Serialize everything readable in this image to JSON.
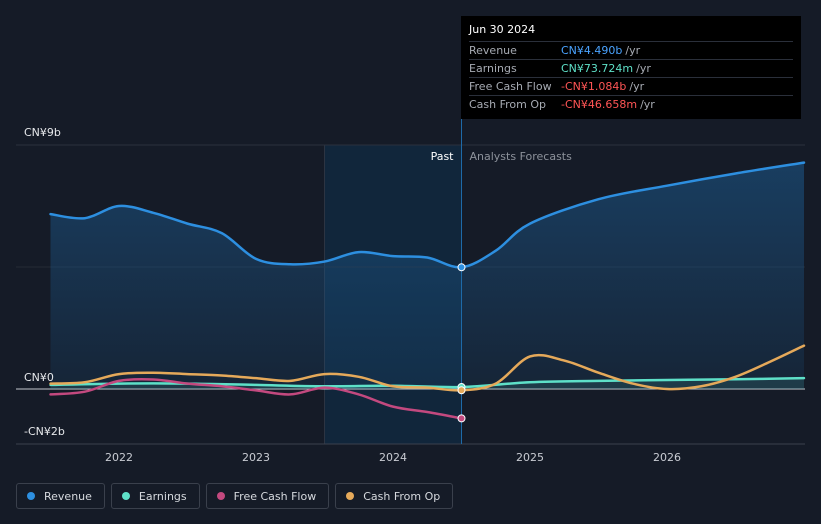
{
  "colors": {
    "revenue": "#2d8fe0",
    "earnings": "#5ee0c8",
    "fcf": "#c3497f",
    "cfo": "#e5a95a",
    "negative": "#ff5555",
    "background": "#151b27"
  },
  "tooltip": {
    "date": "Jun 30 2024",
    "rows": [
      {
        "label": "Revenue",
        "value": "CN¥4.490b",
        "unit": "/yr",
        "color": "#4aa3ff"
      },
      {
        "label": "Earnings",
        "value": "CN¥73.724m",
        "unit": "/yr",
        "color": "#5ee0c8"
      },
      {
        "label": "Free Cash Flow",
        "value": "-CN¥1.084b",
        "unit": "/yr",
        "color": "#ff5555"
      },
      {
        "label": "Cash From Op",
        "value": "-CN¥46.658m",
        "unit": "/yr",
        "color": "#ff5555"
      }
    ]
  },
  "legend": [
    {
      "label": "Revenue",
      "color": "#2d8fe0"
    },
    {
      "label": "Earnings",
      "color": "#5ee0c8"
    },
    {
      "label": "Free Cash Flow",
      "color": "#c3497f"
    },
    {
      "label": "Cash From Op",
      "color": "#e5a95a"
    }
  ],
  "chart_data": {
    "type": "line",
    "title": "",
    "xlabel": "",
    "ylabel": "",
    "x_ticks": [
      2022,
      2023,
      2024,
      2025,
      2026
    ],
    "y_labels": [
      "CN¥9b",
      "CN¥0",
      "-CN¥2b"
    ],
    "ylim": [
      -2,
      9
    ],
    "xlim": [
      2021.5,
      2027.0
    ],
    "past_label": "Past",
    "forecast_label": "Analysts Forecasts",
    "past_start": 2023.5,
    "divider_x": 2024.5,
    "grid": true,
    "series": [
      {
        "name": "Revenue",
        "key": "revenue",
        "area": true,
        "x": [
          2021.5,
          2021.75,
          2022.0,
          2022.25,
          2022.5,
          2022.75,
          2023.0,
          2023.25,
          2023.5,
          2023.75,
          2024.0,
          2024.25,
          2024.5,
          2024.75,
          2025.0,
          2025.5,
          2026.0,
          2026.5,
          2027.0
        ],
        "values": [
          6.45,
          6.3,
          6.75,
          6.5,
          6.1,
          5.75,
          4.8,
          4.6,
          4.7,
          5.05,
          4.9,
          4.85,
          4.49,
          5.1,
          6.1,
          7.0,
          7.5,
          7.95,
          8.35
        ]
      },
      {
        "name": "Earnings",
        "key": "earnings",
        "area": true,
        "x": [
          2021.5,
          2022.0,
          2022.5,
          2023.0,
          2023.5,
          2024.0,
          2024.5,
          2025.0,
          2025.5,
          2026.0,
          2026.5,
          2027.0
        ],
        "values": [
          0.15,
          0.2,
          0.2,
          0.15,
          0.1,
          0.12,
          0.074,
          0.25,
          0.3,
          0.33,
          0.36,
          0.4
        ]
      },
      {
        "name": "Free Cash Flow",
        "key": "fcf",
        "area": false,
        "x": [
          2021.5,
          2021.75,
          2022.0,
          2022.25,
          2022.5,
          2022.75,
          2023.0,
          2023.25,
          2023.5,
          2023.75,
          2024.0,
          2024.25,
          2024.5
        ],
        "values": [
          -0.2,
          -0.1,
          0.3,
          0.35,
          0.2,
          0.1,
          -0.05,
          -0.2,
          0.05,
          -0.2,
          -0.65,
          -0.85,
          -1.084
        ]
      },
      {
        "name": "Cash From Op",
        "key": "cfo",
        "area": false,
        "x": [
          2021.5,
          2021.75,
          2022.0,
          2022.25,
          2022.5,
          2022.75,
          2023.0,
          2023.25,
          2023.5,
          2023.75,
          2024.0,
          2024.25,
          2024.5,
          2024.75,
          2025.0,
          2025.25,
          2025.5,
          2025.75,
          2026.0,
          2026.25,
          2026.5,
          2026.75,
          2027.0
        ],
        "values": [
          0.2,
          0.25,
          0.55,
          0.6,
          0.55,
          0.5,
          0.4,
          0.3,
          0.55,
          0.45,
          0.1,
          0.05,
          -0.047,
          0.2,
          1.2,
          1.05,
          0.6,
          0.2,
          0.0,
          0.1,
          0.45,
          1.0,
          1.6
        ]
      }
    ]
  }
}
